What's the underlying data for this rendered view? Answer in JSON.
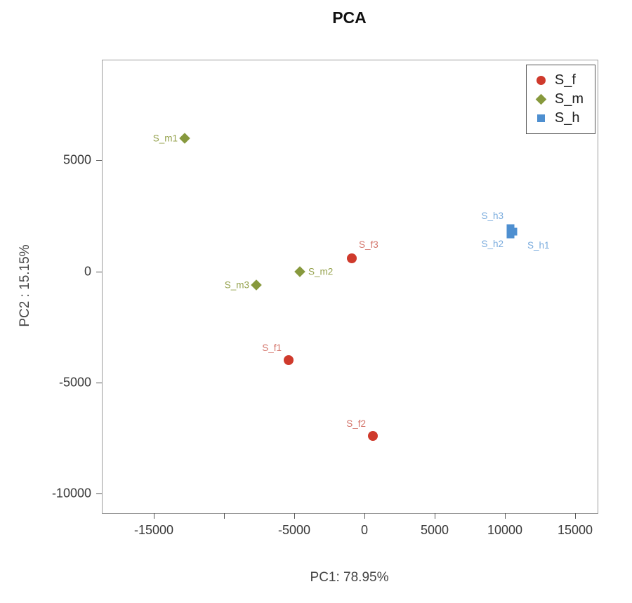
{
  "title": "PCA",
  "chart_data": {
    "type": "scatter",
    "title": "PCA",
    "xlabel": "PC1: 78.95%",
    "ylabel": "PC2 :  15.15%",
    "xlim": [
      -18650,
      16600
    ],
    "ylim": [
      -10880,
      9500
    ],
    "grid": false,
    "x_ticks": [
      {
        "value": -15000,
        "label": "-15000"
      },
      {
        "value": -10000,
        "label": ""
      },
      {
        "value": -5000,
        "label": "-5000"
      },
      {
        "value": 0,
        "label": "0"
      },
      {
        "value": 5000,
        "label": "5000"
      },
      {
        "value": 10000,
        "label": "10000"
      },
      {
        "value": 15000,
        "label": "15000"
      }
    ],
    "y_ticks": [
      {
        "value": 5000,
        "label": "5000"
      },
      {
        "value": 0,
        "label": "0"
      },
      {
        "value": -5000,
        "label": "-5000"
      },
      {
        "value": -10000,
        "label": "-10000"
      }
    ],
    "legend": {
      "position": "top-right",
      "entries": [
        {
          "name": "S_f",
          "marker": "circle",
          "color": "#cf3a2c"
        },
        {
          "name": "S_m",
          "marker": "diamond",
          "color": "#87993d"
        },
        {
          "name": "S_h",
          "marker": "square",
          "color": "#4e8fd0"
        }
      ]
    },
    "series": [
      {
        "name": "S_f",
        "marker": "circle",
        "color": "#cf3a2c",
        "label_color": "#d4746a",
        "points": [
          {
            "label": "S_f1",
            "x": -5400,
            "y": -4000,
            "label_pos": "above-left"
          },
          {
            "label": "S_f2",
            "x": 600,
            "y": -7400,
            "label_pos": "above-left"
          },
          {
            "label": "S_f3",
            "x": -900,
            "y": 600,
            "label_pos": "above-right"
          }
        ]
      },
      {
        "name": "S_m",
        "marker": "diamond",
        "color": "#87993d",
        "label_color": "#95a24d",
        "points": [
          {
            "label": "S_m1",
            "x": -12800,
            "y": 6000,
            "label_pos": "left"
          },
          {
            "label": "S_m2",
            "x": -4600,
            "y": 0,
            "label_pos": "right"
          },
          {
            "label": "S_m3",
            "x": -7700,
            "y": -600,
            "label_pos": "left"
          }
        ]
      },
      {
        "name": "S_h",
        "marker": "square",
        "color": "#4e8fd0",
        "label_color": "#79abdd",
        "points": [
          {
            "label": "S_h3",
            "x": 10400,
            "y": 1950,
            "label_pos": "above-left"
          },
          {
            "label": "S_h2",
            "x": 10400,
            "y": 1650,
            "label_pos": "below-left"
          },
          {
            "label": "S_h1",
            "x": 10600,
            "y": 1800,
            "label_pos": "below-right"
          }
        ]
      }
    ]
  }
}
